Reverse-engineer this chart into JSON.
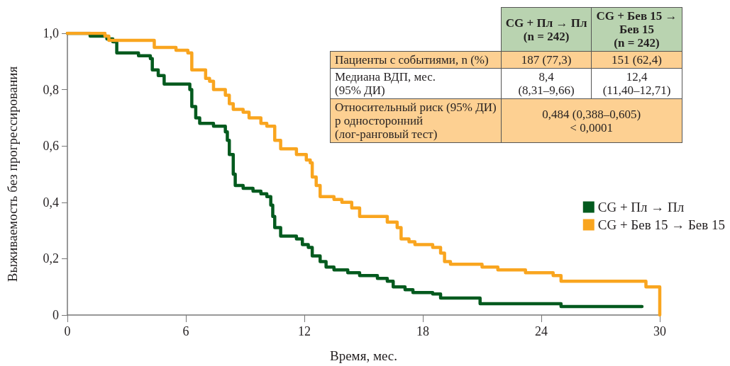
{
  "chart_data": {
    "type": "step",
    "xlabel": "Время, мес.",
    "ylabel": "Выживаемость без прогрессирования",
    "xlim": [
      0,
      30
    ],
    "xticks": [
      0,
      6,
      12,
      18,
      24,
      30
    ],
    "ylim": [
      0,
      1
    ],
    "yticks": [
      {
        "value": 0,
        "label": "0"
      },
      {
        "value": 0.2,
        "label": "0,2"
      },
      {
        "value": 0.4,
        "label": "0,4"
      },
      {
        "value": 0.6,
        "label": "0,6"
      },
      {
        "value": 0.8,
        "label": "0,8"
      },
      {
        "value": 1,
        "label": "1,0"
      }
    ],
    "grid": false,
    "legend": "right",
    "line_style": "solid",
    "marker": "none",
    "series": [
      {
        "name": "CG + Пл → Пл",
        "color": "#035a1e",
        "x": [
          0,
          1.15,
          2.0,
          2.3,
          2.5,
          3.4,
          3.6,
          4.2,
          4.3,
          4.6,
          4.9,
          5.8,
          6.2,
          6.3,
          6.5,
          6.7,
          7.4,
          8.0,
          8.1,
          8.2,
          8.4,
          8.5,
          8.9,
          9.4,
          9.8,
          10.1,
          10.3,
          10.4,
          10.5,
          10.8,
          11.6,
          11.9,
          12.2,
          12.4,
          12.8,
          13.1,
          13.5,
          14.2,
          14.8,
          15.7,
          16.2,
          16.5,
          17.1,
          17.5,
          18.5,
          18.9,
          20.9,
          25.0,
          29.1
        ],
        "values": [
          1,
          0.99,
          0.98,
          0.97,
          0.93,
          0.93,
          0.92,
          0.91,
          0.87,
          0.85,
          0.82,
          0.82,
          0.8,
          0.74,
          0.7,
          0.68,
          0.67,
          0.65,
          0.62,
          0.57,
          0.5,
          0.46,
          0.45,
          0.44,
          0.43,
          0.42,
          0.39,
          0.35,
          0.31,
          0.28,
          0.27,
          0.25,
          0.24,
          0.21,
          0.19,
          0.17,
          0.16,
          0.15,
          0.14,
          0.13,
          0.12,
          0.1,
          0.09,
          0.08,
          0.075,
          0.06,
          0.04,
          0.03,
          0.03
        ]
      },
      {
        "name": "CG + Бев 15 → Бев 15",
        "color": "#f9a51f",
        "x": [
          0,
          1.9,
          2.1,
          3.8,
          4.4,
          5.5,
          6.1,
          6.3,
          7.0,
          7.2,
          7.4,
          8.0,
          8.2,
          8.4,
          8.9,
          9.2,
          9.8,
          10.1,
          10.5,
          10.8,
          11.4,
          11.6,
          12.1,
          12.3,
          12.4,
          12.6,
          12.8,
          13.5,
          13.9,
          14.4,
          14.8,
          16.0,
          16.2,
          16.7,
          16.9,
          17.3,
          17.6,
          18.5,
          18.9,
          19.1,
          19.4,
          20.3,
          21.0,
          21.8,
          23.2,
          24.6,
          25.0,
          29.3,
          30.0
        ],
        "values": [
          1,
          0.99,
          0.975,
          0.975,
          0.95,
          0.94,
          0.93,
          0.87,
          0.84,
          0.83,
          0.8,
          0.78,
          0.75,
          0.73,
          0.72,
          0.7,
          0.68,
          0.67,
          0.62,
          0.59,
          0.59,
          0.57,
          0.55,
          0.54,
          0.49,
          0.46,
          0.42,
          0.41,
          0.4,
          0.38,
          0.35,
          0.35,
          0.33,
          0.31,
          0.27,
          0.26,
          0.25,
          0.24,
          0.22,
          0.19,
          0.18,
          0.18,
          0.17,
          0.16,
          0.15,
          0.14,
          0.12,
          0.1,
          0
        ]
      }
    ],
    "annotations": [
      "CG + Пл → Пл\n(n = 242)",
      "CG + Бев 15 →\nБев 15\n(n = 242)",
      "Пациенты с событиями, n (%)",
      "187 (77,3)",
      "151 (62,4)",
      "Медиана ВДП, мес.\n(95% ДИ)",
      "8,4\n(8,31–9,66)",
      "12,4\n(11,40–12,71)",
      "Относительный риск (95% ДИ)\np односторонний\n(лог-ранговый тест)",
      "0,484 (0,388–0,605)\n< 0,0001"
    ]
  }
}
